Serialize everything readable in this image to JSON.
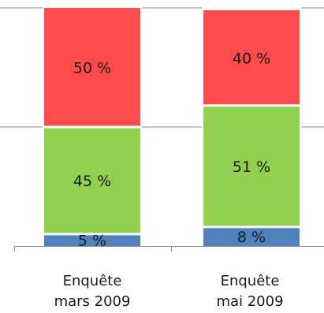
{
  "chart_data": {
    "type": "bar",
    "stacked": true,
    "orientation": "vertical",
    "percent_stacked": true,
    "categories": [
      [
        "Enquête",
        "mars 2009"
      ],
      [
        "Enquête",
        "mai 2009"
      ]
    ],
    "series": [
      {
        "color": "#4f81bd",
        "values": [
          5,
          8
        ]
      },
      {
        "color": "#92d050",
        "values": [
          45,
          51
        ]
      },
      {
        "color": "#ff4b4b",
        "values": [
          50,
          40
        ]
      }
    ],
    "segment_labels": [
      [
        "5 %",
        "45 %",
        "50 %"
      ],
      [
        "8 %",
        "51 %",
        "40 %"
      ]
    ],
    "ylim": [
      0,
      100
    ],
    "grid": true,
    "legend": "none",
    "title": "",
    "xlabel": "",
    "ylabel": ""
  }
}
